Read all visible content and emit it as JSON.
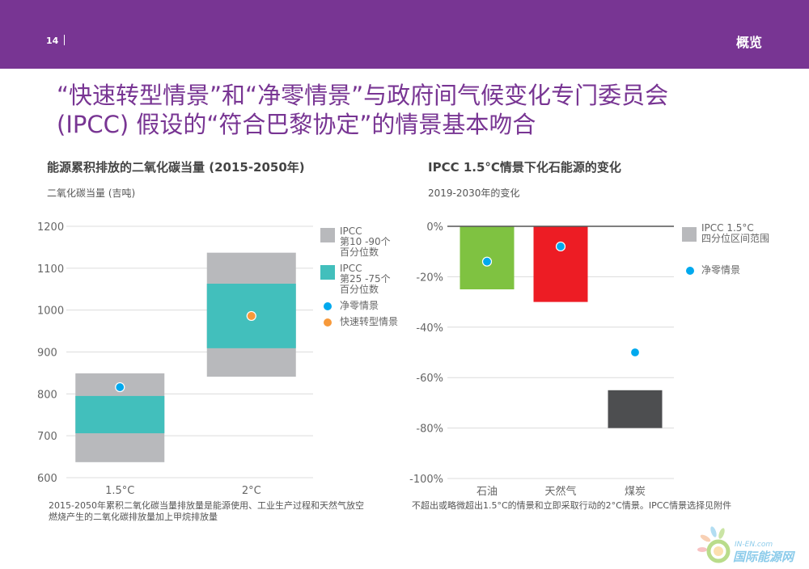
{
  "header": {
    "page_number": "14",
    "section_title": "概览",
    "brand_color": "#783593"
  },
  "headline": {
    "line1": "“快速转型情景”和“净零情景”与政府间气候变化专门委员会",
    "line2": "(IPCC) 假设的“符合巴黎协定”的情景基本吻合"
  },
  "chart_data": [
    {
      "type": "bar",
      "subtype": "floating-range",
      "title": "能源累积排放的二氧化碳当量 (2015-2050年)",
      "ylabel": "二氧化碳当量 (吉吨)",
      "xlabel": "",
      "ylim": [
        600,
        1200
      ],
      "yticks": [
        600,
        700,
        800,
        900,
        1000,
        1100,
        1200
      ],
      "grid": true,
      "categories": [
        "1.5°C",
        "2°C"
      ],
      "series": [
        {
          "name": "IPCC 第10 -90个百分位数",
          "color": "#b8b9bc",
          "ranges": [
            [
              637,
              849
            ],
            [
              841,
              1137
            ]
          ]
        },
        {
          "name": "IPCC 第25 -75个百分位数",
          "color": "#42bfbc",
          "ranges": [
            [
              706,
              795
            ],
            [
              909,
              1063
            ]
          ]
        },
        {
          "name": "净零情景",
          "color": "#00a9ee",
          "marker": "dot",
          "values": [
            816,
            null
          ]
        },
        {
          "name": "快速转型情景",
          "color": "#f7993a",
          "marker": "dot",
          "values": [
            null,
            986
          ]
        }
      ],
      "legend": {
        "placement": "right",
        "items": [
          {
            "label_line1": "IPCC",
            "label_line2": "第10 -90个",
            "label_line3": "百分位数",
            "color": "#b8b9bc",
            "kind": "swatch"
          },
          {
            "label_line1": "IPCC",
            "label_line2": "第25 -75个",
            "label_line3": "百分位数",
            "color": "#42bfbc",
            "kind": "swatch"
          },
          {
            "label_line1": "净零情景",
            "color": "#00a9ee",
            "kind": "dot"
          },
          {
            "label_line1": "快速转型情景",
            "color": "#f7993a",
            "kind": "dot"
          }
        ]
      },
      "footnote_line1": "2015-2050年累积二氧化碳当量排放量是能源使用、工业生产过程和天然气放空",
      "footnote_line2": "燃烧产生的二氧化碳排放量加上甲烷排放量"
    },
    {
      "type": "bar",
      "subtype": "floating-range",
      "title": "IPCC 1.5°C情景下化石能源的变化",
      "ylabel": "2019-2030年的变化",
      "xlabel": "",
      "ylim": [
        -100,
        0
      ],
      "yticks": [
        0,
        -20,
        -40,
        -60,
        -80,
        -100
      ],
      "ytick_labels": [
        "0%",
        "-20%",
        "-40%",
        "-60%",
        "-80%",
        "-100%"
      ],
      "grid": true,
      "categories": [
        "石油",
        "天然气",
        "煤炭"
      ],
      "series": [
        {
          "name": "IPCC 1.5°C 四分位区间范围",
          "colors": [
            "#7fc241",
            "#ed1c24",
            "#4d4e50"
          ],
          "ranges": [
            [
              -25,
              0
            ],
            [
              -30,
              0
            ],
            [
              -80,
              -65
            ]
          ]
        },
        {
          "name": "净零情景",
          "color": "#00a9ee",
          "marker": "dot",
          "values": [
            -14,
            -8,
            -50
          ]
        }
      ],
      "legend": {
        "placement": "right",
        "items": [
          {
            "label_line1": "IPCC 1.5°C",
            "label_line2": "四分位区间范围",
            "color": "#b8b9bc",
            "kind": "swatch"
          },
          {
            "label_line1": "净零情景",
            "color": "#00a9ee",
            "kind": "dot"
          }
        ]
      },
      "footnote_line1": "不超出或略微超出1.5°C的情景和立即采取行动的2°C情景。IPCC情景选择见附件"
    }
  ],
  "watermark": {
    "latin": "IN-EN.com",
    "chinese": "国际能源网"
  }
}
